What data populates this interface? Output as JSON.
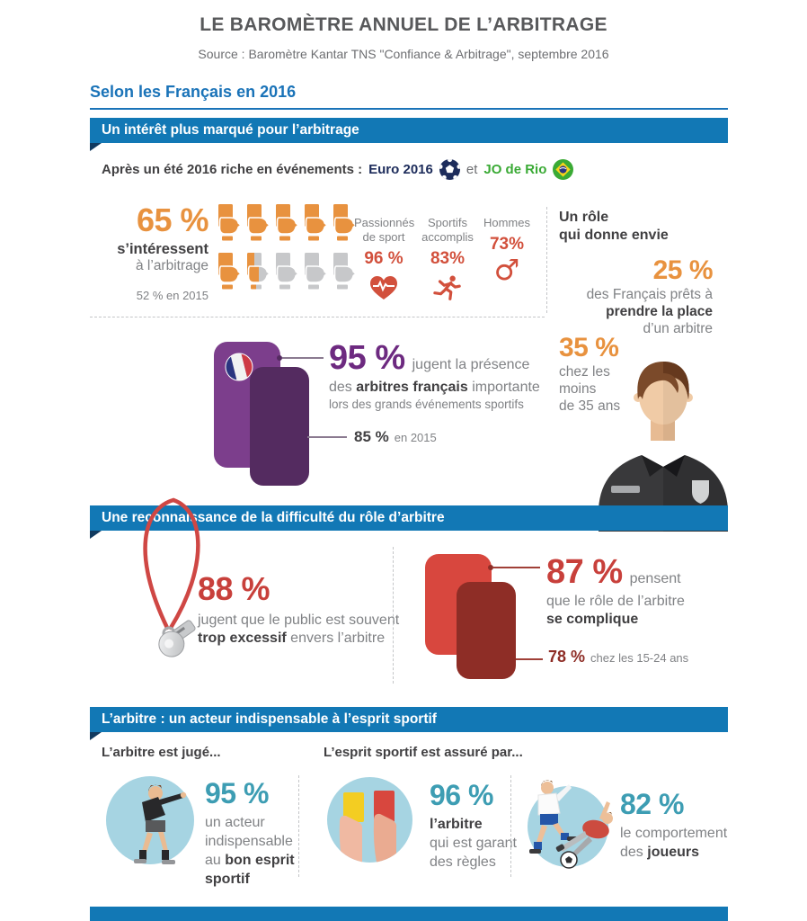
{
  "header": {
    "title": "LE BAROMÈTRE ANNUEL DE L’ARBITRAGE",
    "source": "Source : Baromètre Kantar TNS \"Confiance & Arbitrage\", septembre 2016"
  },
  "intro_heading": "Selon les Français en 2016",
  "section1": {
    "banner": "Un intérêt plus marqué pour l’arbitrage",
    "events": {
      "prefix": "Après un été 2016 riche en événements :",
      "event1": "Euro 2016",
      "and_word": "et",
      "event2": "JO de Rio"
    },
    "interest": {
      "value": "65 %",
      "line1": "s’intéressent",
      "line2": "à l’arbitrage",
      "previous": "52 % en 2015",
      "pictogram": {
        "rows": 2,
        "per_row": 5,
        "filled": 6.5,
        "total": 10
      }
    },
    "profiles": [
      {
        "label1": "Passionnés",
        "label2": "de sport",
        "value": "96 %",
        "icon": "heart-pulse-icon"
      },
      {
        "label1": "Sportifs",
        "label2": "accomplis",
        "value": "83%",
        "icon": "runner-icon"
      },
      {
        "label1": "",
        "label2": "Hommes",
        "value": "73%",
        "icon": "male-icon",
        "glyph": "♂"
      }
    ],
    "role": {
      "title_line1": "Un rôle",
      "title_line2": "qui donne envie",
      "stat_25": {
        "value": "25 %",
        "line1": "des Français prêts à",
        "line2": "prendre la place",
        "line3": "d’un arbitre"
      },
      "stat_35": {
        "value": "35 %",
        "line1": "chez les",
        "line2": "moins",
        "line3": "de 35 ans"
      }
    },
    "french_referees": {
      "value": "95 %",
      "value_suffix": "jugent la présence",
      "line2_pre": "des",
      "line2_bold": "arbitres français",
      "line2_post": "importante",
      "line3": "lors des grands événements sportifs",
      "previous_value": "85 %",
      "previous_suffix": "en 2015"
    }
  },
  "section2": {
    "banner": "Une reconnaissance de la difficulté du rôle d’arbitre",
    "excessive": {
      "value": "88 %",
      "line1": "jugent que le public est souvent",
      "line2_bold": "trop excessif",
      "line2_rest": "envers l’arbitre"
    },
    "complicated": {
      "value": "87 %",
      "value_suffix": "pensent",
      "line2": "que le rôle de l’arbitre",
      "line3_bold": "se complique",
      "sub_value": "78 %",
      "sub_text": "chez les 15-24 ans"
    }
  },
  "section3": {
    "banner": "L’arbitre : un acteur indispensable à l’esprit sportif",
    "intro_left": "L’arbitre est jugé...",
    "intro_right": "L’esprit sportif est assuré par...",
    "stats": [
      {
        "value": "95 %",
        "line1": "un acteur",
        "line2": "indispensable",
        "line3_pre": "au",
        "line3_bold": "bon esprit",
        "line4_bold": "sportif"
      },
      {
        "value": "96 %",
        "line1_bold": "l’arbitre",
        "line2": "qui est garant",
        "line3": "des règles"
      },
      {
        "value": "82 %",
        "line1": "le comportement",
        "line2_pre": "des",
        "line2_bold": "joueurs"
      }
    ]
  },
  "colors": {
    "banner_blue": "#1278b5",
    "heading_blue": "#1a73b8",
    "orange": "#e8923f",
    "red_orange": "#d2503c",
    "red": "#c8403b",
    "dark_red": "#8e2d26",
    "purple": "#7c3e8c",
    "dark_purple": "#542b60",
    "teal": "#3d9db3",
    "light_blue": "#a6d4e2",
    "green": "#3aaa35",
    "navy": "#1d2c5b",
    "text_dark": "#414042",
    "text_gray": "#808285"
  }
}
